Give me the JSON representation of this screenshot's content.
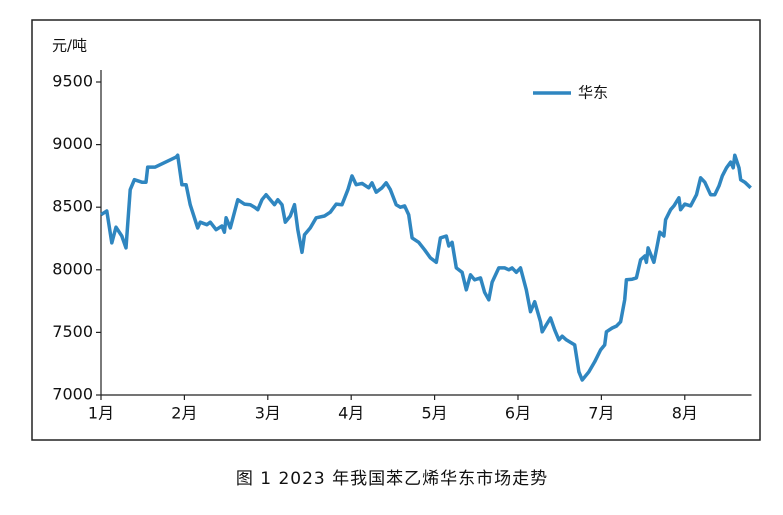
{
  "chart_data": {
    "type": "line",
    "caption": "图 1  2023 年我国苯乙烯华东市场走势",
    "y_label": "元/吨",
    "xlim": [
      1,
      8.8
    ],
    "xticks": [
      {
        "value": 1,
        "label": "1月"
      },
      {
        "value": 2,
        "label": "2月"
      },
      {
        "value": 3,
        "label": "3月"
      },
      {
        "value": 4,
        "label": "4月"
      },
      {
        "value": 5,
        "label": "5月"
      },
      {
        "value": 6,
        "label": "6月"
      },
      {
        "value": 7,
        "label": "7月"
      },
      {
        "value": 8,
        "label": "8月"
      }
    ],
    "ylim": [
      7000,
      9500
    ],
    "yticks": [
      7000,
      7500,
      8000,
      8500,
      9000,
      9500
    ],
    "legend": "top-right",
    "series": [
      {
        "name": "华东",
        "color": "#2f86c0",
        "x": [
          1.0,
          1.07,
          1.13,
          1.18,
          1.25,
          1.3,
          1.35,
          1.4,
          1.49,
          1.54,
          1.56,
          1.65,
          1.9,
          1.92,
          1.97,
          2.02,
          2.07,
          2.16,
          2.19,
          2.27,
          2.31,
          2.38,
          2.45,
          2.48,
          2.5,
          2.55,
          2.64,
          2.72,
          2.79,
          2.84,
          2.88,
          2.93,
          2.98,
          3.03,
          3.08,
          3.12,
          3.17,
          3.21,
          3.27,
          3.32,
          3.36,
          3.41,
          3.44,
          3.51,
          3.58,
          3.68,
          3.75,
          3.82,
          3.89,
          3.96,
          4.01,
          4.06,
          4.13,
          4.21,
          4.25,
          4.3,
          4.37,
          4.42,
          4.47,
          4.54,
          4.59,
          4.64,
          4.69,
          4.73,
          4.81,
          4.88,
          4.95,
          5.02,
          5.07,
          5.14,
          5.17,
          5.21,
          5.26,
          5.33,
          5.38,
          5.43,
          5.48,
          5.55,
          5.6,
          5.65,
          5.69,
          5.77,
          5.84,
          5.89,
          5.93,
          5.98,
          6.03,
          6.1,
          6.15,
          6.2,
          6.27,
          6.29,
          6.34,
          6.39,
          6.44,
          6.49,
          6.53,
          6.58,
          6.63,
          6.68,
          6.73,
          6.77,
          6.85,
          6.92,
          6.99,
          7.04,
          7.06,
          7.13,
          7.18,
          7.23,
          7.28,
          7.3,
          7.37,
          7.42,
          7.47,
          7.52,
          7.54,
          7.56,
          7.63,
          7.66,
          7.7,
          7.75,
          7.77,
          7.83,
          7.87,
          7.93,
          7.95,
          8.0,
          8.07,
          8.14,
          8.19,
          8.24,
          8.31,
          8.36,
          8.41,
          8.45,
          8.5,
          8.55,
          8.58,
          8.6,
          8.65,
          8.67,
          8.72,
          8.79
        ],
        "values": [
          8440,
          8470,
          8215,
          8340,
          8270,
          8175,
          8640,
          8720,
          8700,
          8700,
          8820,
          8820,
          8900,
          8915,
          8680,
          8680,
          8520,
          8335,
          8380,
          8360,
          8380,
          8320,
          8350,
          8300,
          8415,
          8335,
          8560,
          8525,
          8520,
          8500,
          8480,
          8560,
          8600,
          8560,
          8520,
          8560,
          8520,
          8380,
          8430,
          8520,
          8320,
          8140,
          8280,
          8335,
          8415,
          8430,
          8460,
          8525,
          8520,
          8640,
          8750,
          8680,
          8690,
          8655,
          8695,
          8620,
          8655,
          8695,
          8640,
          8520,
          8500,
          8510,
          8440,
          8255,
          8220,
          8160,
          8095,
          8060,
          8255,
          8270,
          8190,
          8220,
          8015,
          7980,
          7840,
          7960,
          7920,
          7935,
          7820,
          7760,
          7900,
          8015,
          8015,
          8000,
          8015,
          7980,
          8015,
          7840,
          7665,
          7745,
          7585,
          7505,
          7560,
          7615,
          7520,
          7440,
          7470,
          7440,
          7420,
          7400,
          7185,
          7120,
          7185,
          7265,
          7360,
          7400,
          7505,
          7535,
          7550,
          7585,
          7760,
          7920,
          7925,
          7935,
          8080,
          8110,
          8060,
          8175,
          8060,
          8160,
          8300,
          8270,
          8400,
          8480,
          8510,
          8575,
          8480,
          8525,
          8510,
          8600,
          8735,
          8700,
          8600,
          8600,
          8670,
          8750,
          8815,
          8860,
          8815,
          8915,
          8815,
          8720,
          8700,
          8655
        ]
      }
    ]
  }
}
